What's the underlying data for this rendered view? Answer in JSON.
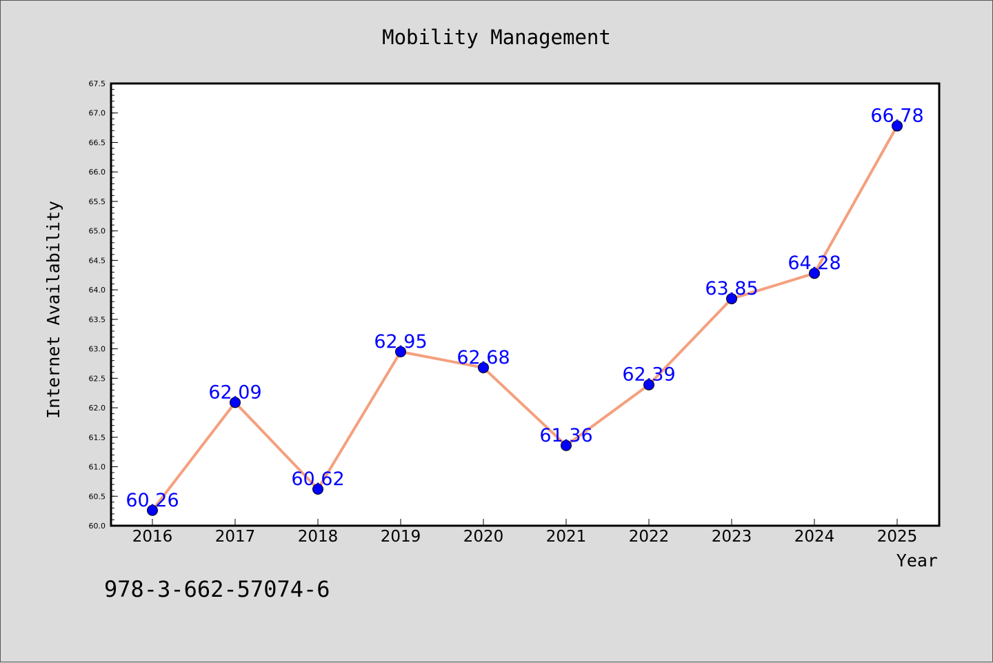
{
  "chart_data": {
    "type": "line",
    "title": "Mobility Management",
    "xlabel": "Year",
    "ylabel": "Internet Availability",
    "categories": [
      "2016",
      "2017",
      "2018",
      "2019",
      "2020",
      "2021",
      "2022",
      "2023",
      "2024",
      "2025"
    ],
    "series": [
      {
        "values": [
          60.26,
          62.09,
          60.62,
          62.95,
          62.68,
          61.36,
          62.39,
          63.85,
          64.28,
          66.78
        ],
        "line_color": "#f4a07e",
        "marker_color": "#0000ff"
      }
    ],
    "data_labels": [
      "60.26",
      "62.09",
      "60.62",
      "62.95",
      "62.68",
      "61.36",
      "62.39",
      "63.85",
      "64.28",
      "66.78"
    ],
    "ylim": [
      60.0,
      67.5
    ],
    "yticks": [
      "60.0",
      "60.5",
      "61.0",
      "61.5",
      "62.0",
      "62.5",
      "63.0",
      "63.5",
      "64.0",
      "64.5",
      "65.0",
      "65.5",
      "66.0",
      "66.5",
      "67.0",
      "67.5"
    ],
    "grid": false,
    "legend": "none",
    "label_color": "#0000ff"
  },
  "footer_text": "978-3-662-57074-6"
}
